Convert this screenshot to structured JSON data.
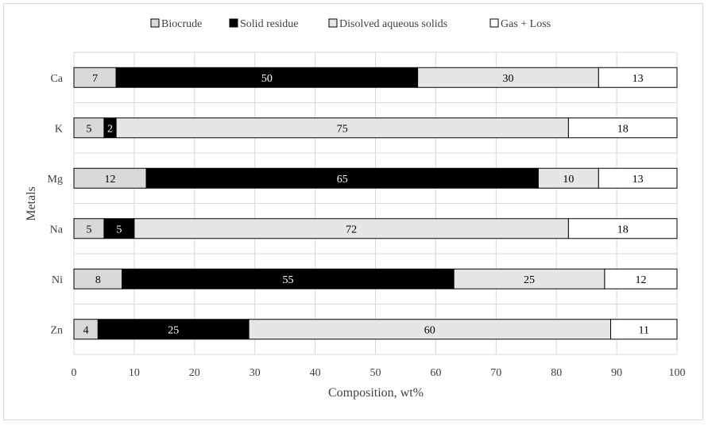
{
  "chart_data": {
    "type": "bar",
    "orientation": "horizontal",
    "stacked": true,
    "xlabel": "Composition, wt%",
    "ylabel": "Metals",
    "xlim": [
      0,
      100
    ],
    "xticks": [
      0,
      10,
      20,
      30,
      40,
      50,
      60,
      70,
      80,
      90,
      100
    ],
    "grid": true,
    "legend_position": "top",
    "categories": [
      "Ca",
      "K",
      "Mg",
      "Na",
      "Ni",
      "Zn"
    ],
    "series": [
      {
        "name": "Biocrude",
        "color": "#d9d9d9",
        "label_color": "#000000",
        "values": [
          7,
          5,
          12,
          5,
          8,
          4
        ]
      },
      {
        "name": "Solid residue",
        "color": "#000000",
        "label_color": "#ffffff",
        "values": [
          50,
          2,
          65,
          5,
          55,
          25
        ]
      },
      {
        "name": "Disolved aqueous solids",
        "color": "#e6e6e6",
        "label_color": "#000000",
        "values": [
          30,
          75,
          10,
          72,
          25,
          60
        ]
      },
      {
        "name": "Gas + Loss",
        "color": "#ffffff",
        "label_color": "#000000",
        "values": [
          13,
          18,
          13,
          18,
          12,
          11
        ]
      }
    ]
  }
}
